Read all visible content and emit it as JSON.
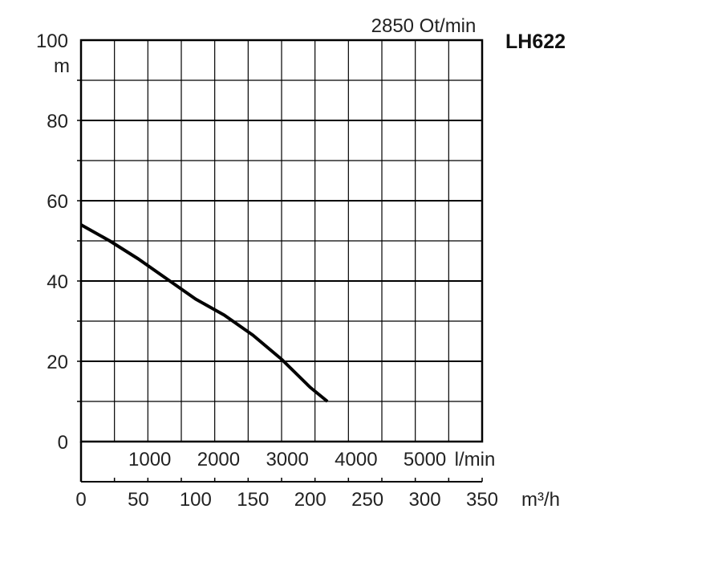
{
  "chart_data": {
    "type": "line",
    "model": "LH622",
    "speed_label": "2850 Ot/min",
    "y_axis": {
      "unit": "m",
      "ylim": [
        0,
        100
      ],
      "ticks": [
        "0",
        "20",
        "40",
        "60",
        "80",
        "100"
      ],
      "tick_values": [
        0,
        20,
        40,
        60,
        80,
        100
      ]
    },
    "x_axis_flow_m3h": {
      "unit": "m³/h",
      "xlim": [
        0,
        350
      ],
      "ticks": [
        "0",
        "50",
        "100",
        "150",
        "200",
        "250",
        "300",
        "350"
      ],
      "tick_values": [
        0,
        50,
        100,
        150,
        200,
        250,
        300,
        350
      ]
    },
    "x_axis_flow_lmin": {
      "unit": "l/min",
      "ticks": [
        "1000",
        "2000",
        "3000",
        "4000",
        "5000"
      ],
      "tick_values": [
        1000,
        2000,
        3000,
        4000,
        5000
      ]
    },
    "grid": true,
    "series": [
      {
        "x": [
          0,
          25,
          50,
          75,
          100,
          125,
          150,
          175,
          200,
          215
        ],
        "y": [
          54,
          50,
          45.5,
          40.5,
          35.5,
          31.5,
          26.5,
          20.5,
          13.5,
          10
        ],
        "color": "#000000"
      }
    ]
  }
}
